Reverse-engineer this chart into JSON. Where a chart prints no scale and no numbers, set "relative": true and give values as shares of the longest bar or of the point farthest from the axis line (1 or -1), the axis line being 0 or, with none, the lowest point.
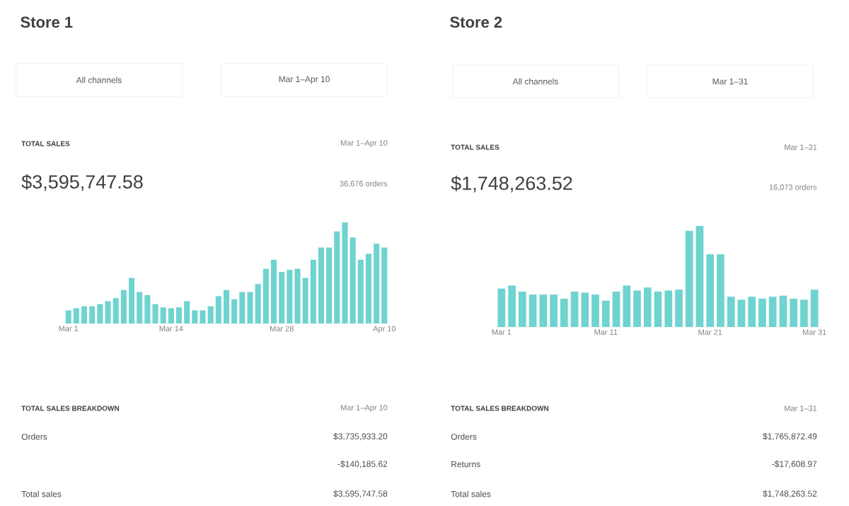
{
  "chart_data": [
    {
      "type": "bar",
      "title": "Store 1",
      "relative": true,
      "color": "#6fd3cf",
      "categories": [
        "Mar 1",
        null,
        null,
        null,
        null,
        null,
        null,
        null,
        null,
        null,
        null,
        null,
        null,
        "Mar 14",
        null,
        null,
        null,
        null,
        null,
        null,
        null,
        null,
        null,
        null,
        null,
        null,
        null,
        "Mar 28",
        null,
        null,
        null,
        null,
        null,
        null,
        null,
        null,
        null,
        null,
        null,
        null,
        "Apr 10"
      ],
      "values": [
        0.13,
        0.15,
        0.17,
        0.17,
        0.19,
        0.22,
        0.25,
        0.33,
        0.45,
        0.31,
        0.28,
        0.19,
        0.16,
        0.15,
        0.16,
        0.22,
        0.13,
        0.13,
        0.17,
        0.27,
        0.33,
        0.24,
        0.31,
        0.31,
        0.39,
        0.54,
        0.63,
        0.51,
        0.53,
        0.54,
        0.45,
        0.63,
        0.75,
        0.75,
        0.91,
        1,
        0.85,
        0.63,
        0.69,
        0.79,
        0.75
      ],
      "annotations": [
        "All channels",
        "Mar 1–Apr 10",
        "TOTAL SALES",
        "Mar 1–Apr 10",
        "$3,595,747.58",
        "36,676 orders",
        "TOTAL SALES BREAKDOWN",
        "Mar 1–Apr 10",
        "Orders",
        "$3,735,933.20",
        "-$140,185.62",
        "Total sales",
        "$3,595,747.58"
      ]
    },
    {
      "type": "bar",
      "title": "Store 2",
      "relative": true,
      "color": "#6fd3cf",
      "categories": [
        "Mar 1",
        null,
        null,
        null,
        null,
        null,
        null,
        null,
        null,
        null,
        "Mar 11",
        null,
        null,
        null,
        null,
        null,
        null,
        null,
        null,
        null,
        "Mar 21",
        null,
        null,
        null,
        null,
        null,
        null,
        null,
        null,
        null,
        "Mar 31"
      ],
      "values": [
        0.38,
        0.41,
        0.35,
        0.32,
        0.32,
        0.32,
        0.28,
        0.35,
        0.34,
        0.32,
        0.26,
        0.35,
        0.41,
        0.36,
        0.39,
        0.35,
        0.36,
        0.37,
        0.95,
        1,
        0.72,
        0.72,
        0.3,
        0.27,
        0.3,
        0.28,
        0.3,
        0.31,
        0.28,
        0.27,
        0.37
      ],
      "annotations": [
        "All channels",
        "Mar 1–31",
        "TOTAL SALES",
        "Mar 1–31",
        "$1,748,263.52",
        "16,073 orders",
        "TOTAL SALES BREAKDOWN",
        "Mar 1–31",
        "Orders",
        "$1,765,872.49",
        "Returns",
        "-$17,608.97",
        "Total sales",
        "$1,748,263.52"
      ]
    }
  ]
}
